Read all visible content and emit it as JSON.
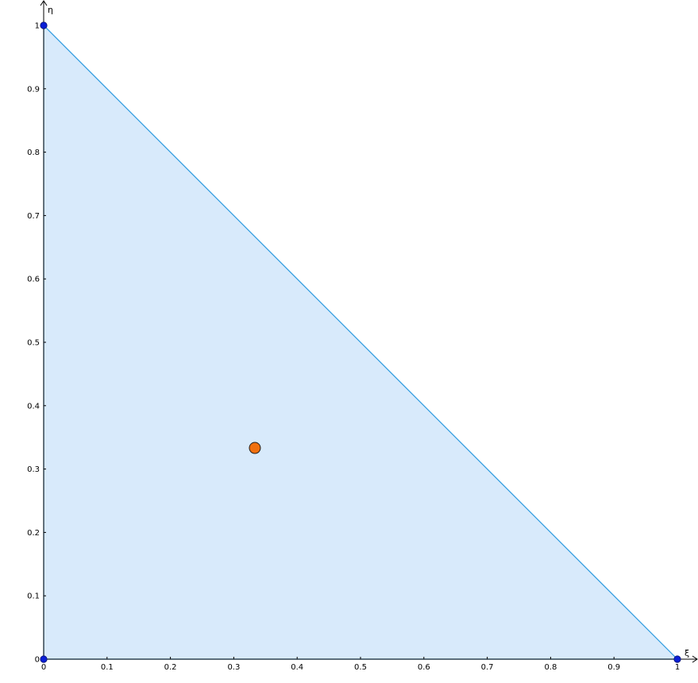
{
  "chart_data": {
    "type": "scatter",
    "xlabel": "ξ",
    "ylabel": "η",
    "xlim": [
      0,
      1
    ],
    "ylim": [
      0,
      1
    ],
    "x_ticks": [
      "0",
      "0.1",
      "0.2",
      "0.3",
      "0.4",
      "0.5",
      "0.6",
      "0.7",
      "0.8",
      "0.9",
      "1"
    ],
    "y_ticks": [
      "0",
      "0.1",
      "0.2",
      "0.3",
      "0.4",
      "0.5",
      "0.6",
      "0.7",
      "0.8",
      "0.9",
      "1"
    ],
    "triangle": {
      "vertices": [
        [
          0,
          0
        ],
        [
          1,
          0
        ],
        [
          0,
          1
        ]
      ],
      "fill_color": "#d8eafb",
      "edge_color": "#2b9ae0"
    },
    "series": [
      {
        "points": [
          [
            0,
            0
          ],
          [
            1,
            0
          ],
          [
            0,
            1
          ]
        ],
        "color": "#0a1fd6"
      },
      {
        "points": [
          [
            0.3333,
            0.3333
          ]
        ],
        "color": "#f07010"
      }
    ],
    "grid": false
  }
}
